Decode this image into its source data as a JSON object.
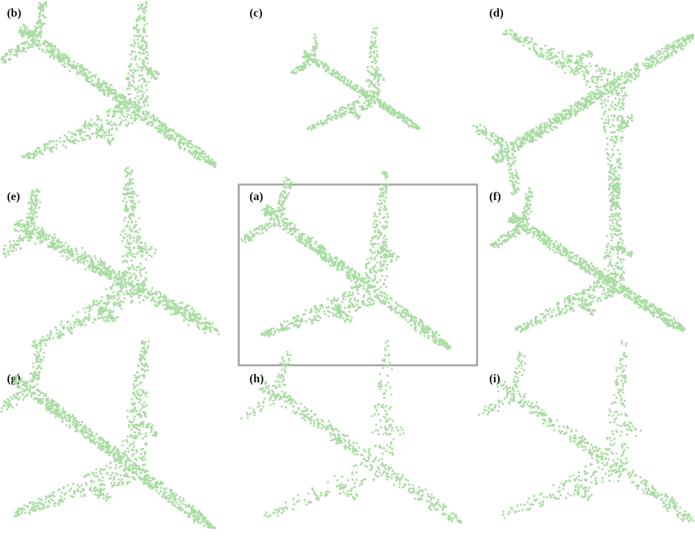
{
  "panels": [
    {
      "label": "(b)"
    },
    {
      "label": "(c)"
    },
    {
      "label": "(d)"
    },
    {
      "label": "(e)"
    },
    {
      "label": "(a)"
    },
    {
      "label": "(f)"
    },
    {
      "label": "(g)"
    },
    {
      "label": "(h)"
    },
    {
      "label": "(i)"
    }
  ]
}
